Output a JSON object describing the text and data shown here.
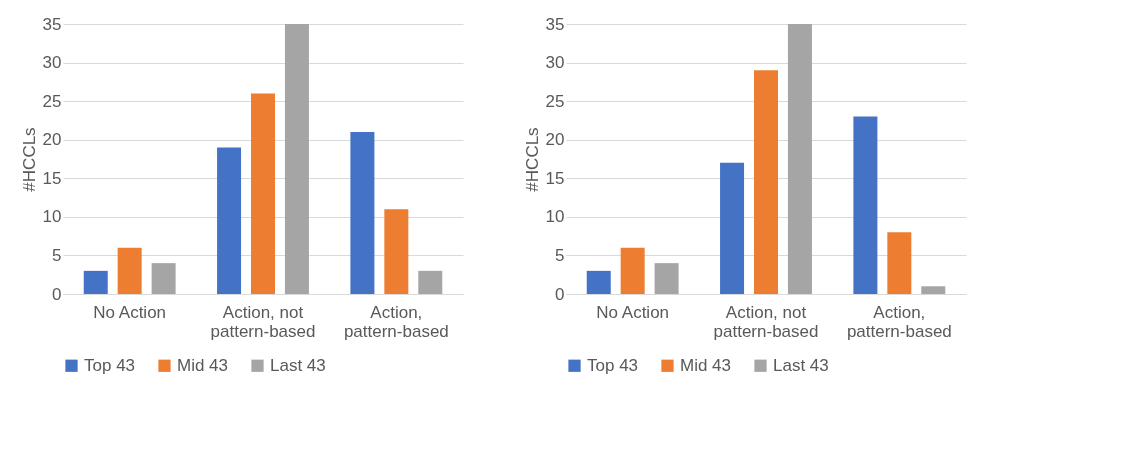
{
  "chart_data": [
    {
      "type": "bar",
      "ylabel": "#HCCLs",
      "categories": [
        "No Action",
        "Action, not pattern-based",
        "Action, pattern-based"
      ],
      "ylim": [
        0,
        35
      ],
      "yticks": [
        0,
        5,
        10,
        15,
        20,
        25,
        30,
        35
      ],
      "grid": "y",
      "legend": "bottom",
      "series": [
        {
          "name": "Top 43",
          "color": "#4472c4",
          "values": [
            3,
            19,
            21
          ]
        },
        {
          "name": "Mid 43",
          "color": "#ed7d31",
          "values": [
            6,
            26,
            11
          ]
        },
        {
          "name": "Last 43",
          "color": "#a5a5a5",
          "values": [
            4,
            35,
            3
          ]
        }
      ]
    },
    {
      "type": "bar",
      "ylabel": "#HCCLs",
      "categories": [
        "No Action",
        "Action, not pattern-based",
        "Action, pattern-based"
      ],
      "ylim": [
        0,
        35
      ],
      "yticks": [
        0,
        5,
        10,
        15,
        20,
        25,
        30,
        35
      ],
      "grid": "y",
      "legend": "bottom",
      "series": [
        {
          "name": "Top 43",
          "color": "#4472c4",
          "values": [
            3,
            17,
            23
          ]
        },
        {
          "name": "Mid 43",
          "color": "#ed7d31",
          "values": [
            6,
            29,
            8
          ]
        },
        {
          "name": "Last 43",
          "color": "#a5a5a5",
          "values": [
            4,
            35,
            1
          ]
        }
      ]
    }
  ]
}
